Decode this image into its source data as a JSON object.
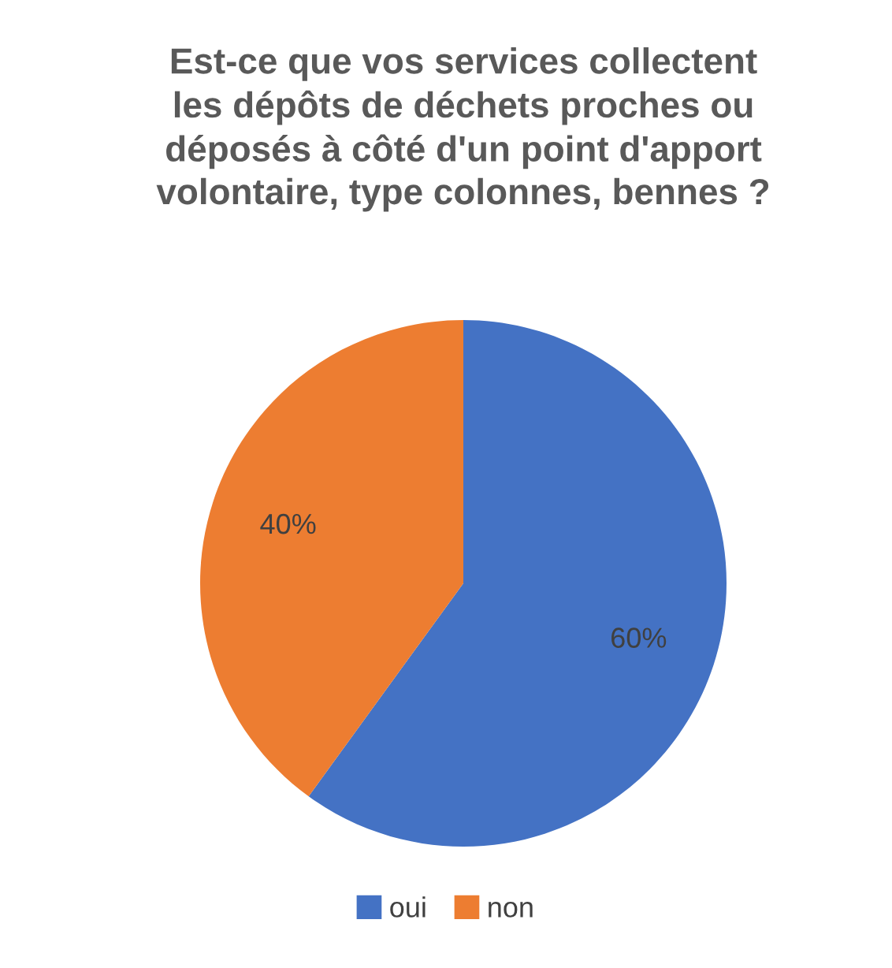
{
  "chart_data": {
    "type": "pie",
    "title": "Est-ce que vos services collectent\nles dépôts de déchets proches ou\ndéposés à côté d'un point d'apport\nvolontaire, type colonnes, bennes ?",
    "categories": [
      "oui",
      "non"
    ],
    "values": [
      60,
      40
    ],
    "colors": [
      "#4472c4",
      "#ed7d31"
    ],
    "value_labels": [
      "60%",
      "40%"
    ],
    "legend": "bottom"
  }
}
